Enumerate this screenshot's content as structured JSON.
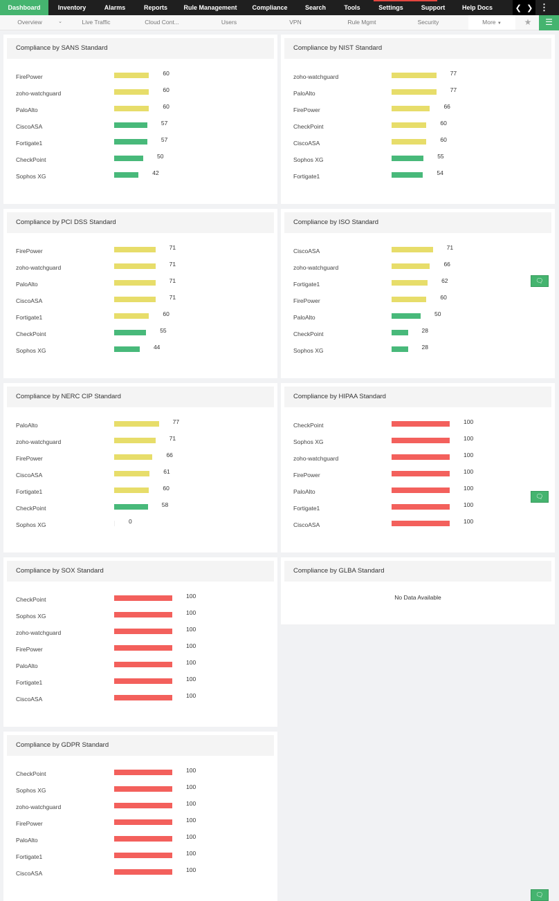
{
  "topnav": {
    "items": [
      "Dashboard",
      "Inventory",
      "Alarms",
      "Reports",
      "Rule Management",
      "Compliance",
      "Search",
      "Tools",
      "Settings",
      "Support",
      "Help Docs"
    ],
    "active": "Dashboard"
  },
  "subnav": {
    "items": [
      "Overview",
      "Live Traffic",
      "Cloud Cont...",
      "Users",
      "VPN",
      "Rule Mgmt",
      "Security"
    ],
    "more": "More"
  },
  "colors": {
    "pass": "#48b97a",
    "warn": "#e7dd6a",
    "fail": "#f3605c",
    "accent": "#45b46f"
  },
  "widgets": [
    {
      "title": "Compliance by SANS Standard",
      "rows": [
        [
          "FirePower",
          60
        ],
        [
          "zoho-watchguard",
          60
        ],
        [
          "PaloAlto",
          60
        ],
        [
          "CiscoASA",
          57
        ],
        [
          "Fortigate1",
          57
        ],
        [
          "CheckPoint",
          50
        ],
        [
          "Sophos XG",
          42
        ]
      ]
    },
    {
      "title": "Compliance by NIST Standard",
      "rows": [
        [
          "zoho-watchguard",
          77
        ],
        [
          "PaloAlto",
          77
        ],
        [
          "FirePower",
          66
        ],
        [
          "CheckPoint",
          60
        ],
        [
          "CiscoASA",
          60
        ],
        [
          "Sophos XG",
          55
        ],
        [
          "Fortigate1",
          54
        ]
      ]
    },
    {
      "title": "Compliance by PCI DSS Standard",
      "rows": [
        [
          "FirePower",
          71
        ],
        [
          "zoho-watchguard",
          71
        ],
        [
          "PaloAlto",
          71
        ],
        [
          "CiscoASA",
          71
        ],
        [
          "Fortigate1",
          60
        ],
        [
          "CheckPoint",
          55
        ],
        [
          "Sophos XG",
          44
        ]
      ]
    },
    {
      "title": "Compliance by ISO Standard",
      "rows": [
        [
          "CiscoASA",
          71
        ],
        [
          "zoho-watchguard",
          66
        ],
        [
          "Fortigate1",
          62
        ],
        [
          "FirePower",
          60
        ],
        [
          "PaloAlto",
          50
        ],
        [
          "CheckPoint",
          28
        ],
        [
          "Sophos XG",
          28
        ]
      ]
    },
    {
      "title": "Compliance by NERC CIP Standard",
      "rows": [
        [
          "PaloAlto",
          77
        ],
        [
          "zoho-watchguard",
          71
        ],
        [
          "FirePower",
          66
        ],
        [
          "CiscoASA",
          61
        ],
        [
          "Fortigate1",
          60
        ],
        [
          "CheckPoint",
          58
        ],
        [
          "Sophos XG",
          0
        ]
      ]
    },
    {
      "title": "Compliance by HIPAA Standard",
      "rows": [
        [
          "CheckPoint",
          100
        ],
        [
          "Sophos XG",
          100
        ],
        [
          "zoho-watchguard",
          100
        ],
        [
          "FirePower",
          100
        ],
        [
          "PaloAlto",
          100
        ],
        [
          "Fortigate1",
          100
        ],
        [
          "CiscoASA",
          100
        ]
      ]
    },
    {
      "title": "Compliance by SOX Standard",
      "rows": [
        [
          "CheckPoint",
          100
        ],
        [
          "Sophos XG",
          100
        ],
        [
          "zoho-watchguard",
          100
        ],
        [
          "FirePower",
          100
        ],
        [
          "PaloAlto",
          100
        ],
        [
          "Fortigate1",
          100
        ],
        [
          "CiscoASA",
          100
        ]
      ]
    },
    {
      "title": "Compliance by GLBA Standard",
      "rows": [],
      "empty": "No Data Available"
    },
    {
      "title": "Compliance by GDPR Standard",
      "rows": [
        [
          "CheckPoint",
          100
        ],
        [
          "Sophos XG",
          100
        ],
        [
          "zoho-watchguard",
          100
        ],
        [
          "FirePower",
          100
        ],
        [
          "PaloAlto",
          100
        ],
        [
          "Fortigate1",
          100
        ],
        [
          "CiscoASA",
          100
        ]
      ]
    }
  ]
}
